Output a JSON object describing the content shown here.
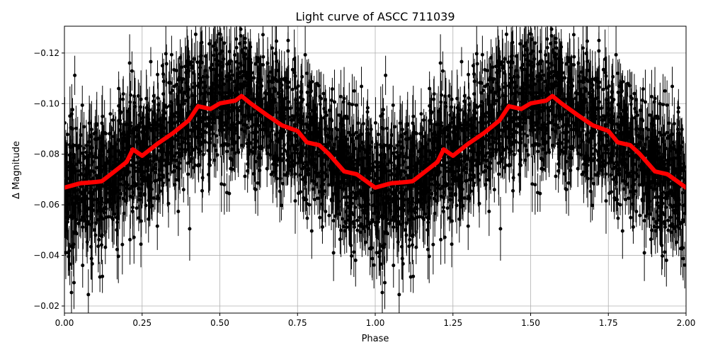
{
  "chart_data": {
    "type": "scatter",
    "title": "Light curve of ASCC 711039",
    "xlabel": "Phase",
    "ylabel": "Δ Magnitude",
    "xlim": [
      0,
      2
    ],
    "ylim": [
      -0.0172,
      -0.1306
    ],
    "y_inverted": true,
    "grid": true,
    "xticks": [
      "0.00",
      "0.25",
      "0.50",
      "0.75",
      "1.00",
      "1.25",
      "1.50",
      "1.75",
      "2.00"
    ],
    "xtick_values": [
      0,
      0.25,
      0.5,
      0.75,
      1,
      1.25,
      1.5,
      1.75,
      2
    ],
    "yticks": [
      "−0.12",
      "−0.10",
      "−0.08",
      "−0.06",
      "−0.04",
      "−0.02"
    ],
    "ytick_values": [
      -0.12,
      -0.1,
      -0.08,
      -0.06,
      -0.04,
      -0.02
    ],
    "series": [
      {
        "type": "errorbar-scatter",
        "color": "#000000",
        "description_visible": "dense black points with vertical error bars, phase-folded and repeated over two cycles"
      },
      {
        "type": "line",
        "color": "#ff0000",
        "period_repeat": 2,
        "x": [
          0,
          0.05,
          0.1,
          0.12,
          0.15,
          0.2,
          0.22,
          0.25,
          0.3,
          0.35,
          0.4,
          0.43,
          0.47,
          0.5,
          0.55,
          0.57,
          0.6,
          0.65,
          0.7,
          0.75,
          0.78,
          0.82,
          0.85,
          0.9,
          0.94,
          1.0
        ],
        "y": [
          -0.0668,
          -0.0685,
          -0.069,
          -0.0693,
          -0.0721,
          -0.0769,
          -0.0819,
          -0.0794,
          -0.0842,
          -0.0884,
          -0.0934,
          -0.099,
          -0.0979,
          -0.1001,
          -0.1012,
          -0.103,
          -0.1,
          -0.0956,
          -0.0914,
          -0.0892,
          -0.0847,
          -0.0836,
          -0.0802,
          -0.0732,
          -0.0721,
          -0.0668
        ]
      }
    ]
  }
}
